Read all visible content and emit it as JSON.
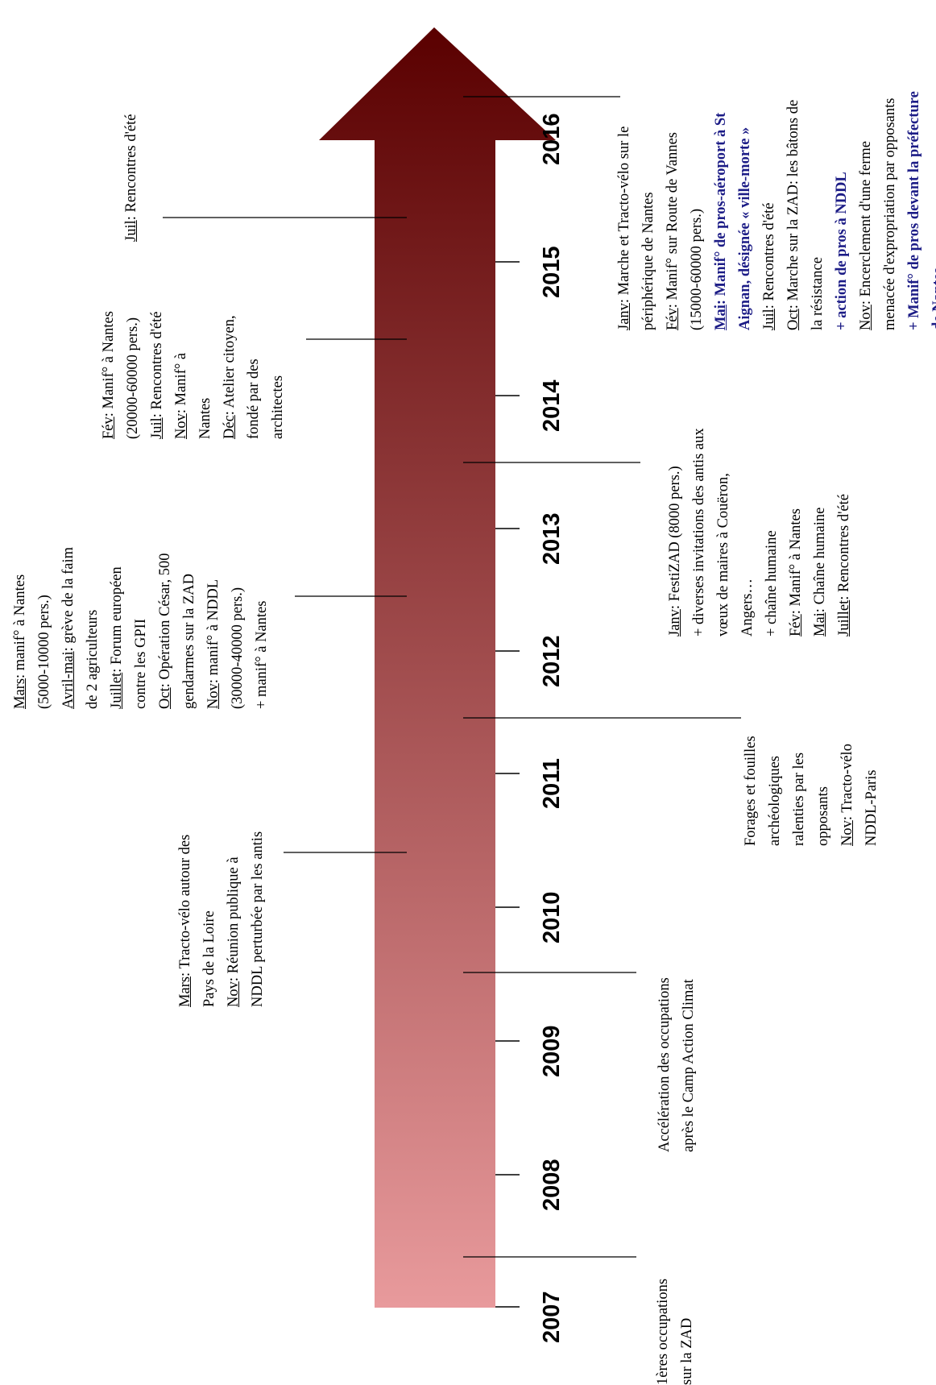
{
  "title": "",
  "arrow": {
    "color_start": "#e89a9c",
    "color_end": "#5a0000"
  },
  "years": [
    "2007",
    "2008",
    "2009",
    "2010",
    "2011",
    "2012",
    "2013",
    "2014",
    "2015",
    "2016"
  ],
  "events_right": [
    {
      "year": "2007",
      "lines": [
        {
          "text": "1ères occupations"
        },
        {
          "text": "sur la ZAD"
        }
      ]
    },
    {
      "year": "2009",
      "lines": [
        {
          "text": "Accélération des occupations"
        },
        {
          "text": "après le Camp Action Climat"
        }
      ]
    },
    {
      "year": "2011",
      "lines": [
        {
          "text": "Forages et fouilles"
        },
        {
          "text": "archéologiques"
        },
        {
          "text": "ralenties par les"
        },
        {
          "text": "opposants"
        },
        {
          "key": "Nov",
          "text": ": Tracto-vélo"
        },
        {
          "text": "NDDL-Paris"
        }
      ]
    },
    {
      "year": "2013",
      "lines": [
        {
          "key": "Janv",
          "text": ": FestiZAD (8000 pers.)"
        },
        {
          "text": "+ diverses invitations des antis aux"
        },
        {
          "text": "vœux de maires à Couëron,"
        },
        {
          "text": "Angers…"
        },
        {
          "text": "+ chaîne humaine"
        },
        {
          "key": "Fév",
          "text": ": Manif° à Nantes"
        },
        {
          "key": "Mai",
          "text": ": Chaîne humaine"
        },
        {
          "key": "Juillet",
          "text": ": Rencontres d'été"
        }
      ]
    },
    {
      "year": "2016",
      "lines": [
        {
          "key": "Janv",
          "text": ": Marche et Tracto-vélo sur le"
        },
        {
          "text": "périphérique de Nantes"
        },
        {
          "key": "Fév",
          "text": ": Manif° sur Route de Vannes"
        },
        {
          "text": "(15000-60000 pers.)"
        },
        {
          "key": "Mai",
          "text": ": Manif° de pros-aéroport à St",
          "style": "blue"
        },
        {
          "text": "Aignan, désignée « ville-morte »",
          "style": "blue"
        },
        {
          "key": "Juil",
          "text": ": Rencontres d'été"
        },
        {
          "key": "Oct",
          "text": ": Marche sur la ZAD: les bâtons de"
        },
        {
          "text": "la résistance"
        },
        {
          "text": "+ action de pros à NDDL",
          "style": "blue"
        },
        {
          "key": "Nov",
          "text": ": Encerclement d'une ferme"
        },
        {
          "text": "menacée d'expropriation par opposants"
        },
        {
          "text": "+ Manif° de pros devant la préfecture",
          "style": "blue"
        },
        {
          "text": "de Nantes",
          "style": "blue"
        }
      ]
    }
  ],
  "events_left": [
    {
      "year": "2010",
      "lines": [
        {
          "key": "Mars",
          "text": ": Tracto-vélo autour des"
        },
        {
          "text": "Pays de la Loire"
        },
        {
          "key": "Nov",
          "text": ": Réunion publique à"
        },
        {
          "text": "NDDL perturbée par les antis"
        }
      ]
    },
    {
      "year": "2012",
      "lines": [
        {
          "key": "Mars",
          "text": ": manif° à Nantes"
        },
        {
          "text": "(5000-10000 pers.)"
        },
        {
          "key": "Avril-mai",
          "text": ": grève de la faim"
        },
        {
          "text": "de 2 agriculteurs"
        },
        {
          "key": "Juillet",
          "text": ": Forum européen"
        },
        {
          "text": "contre les GPII"
        },
        {
          "key": "Oct",
          "text": ": Opération César, 500"
        },
        {
          "text": "gendarmes sur la ZAD"
        },
        {
          "key": "Nov",
          "text": ": manif° à NDDL"
        },
        {
          "text": "(30000-40000 pers.)"
        },
        {
          "text": "+ manif° à Nantes"
        }
      ]
    },
    {
      "year": "2014",
      "lines": [
        {
          "key": "Fév",
          "text": ": Manif° à Nantes"
        },
        {
          "text": "(20000-60000 pers.)"
        },
        {
          "key": "Juil",
          "text": ": Rencontres d'été"
        },
        {
          "key": "Nov",
          "text": ": Manif° à"
        },
        {
          "text": "Nantes"
        },
        {
          "key": "Déc",
          "text": ": Atelier citoyen,"
        },
        {
          "text": "fondé par des"
        },
        {
          "text": "architectes"
        }
      ]
    },
    {
      "year": "2015",
      "lines": [
        {
          "key": "Juil",
          "text": ": Rencontres d'été"
        }
      ]
    }
  ]
}
